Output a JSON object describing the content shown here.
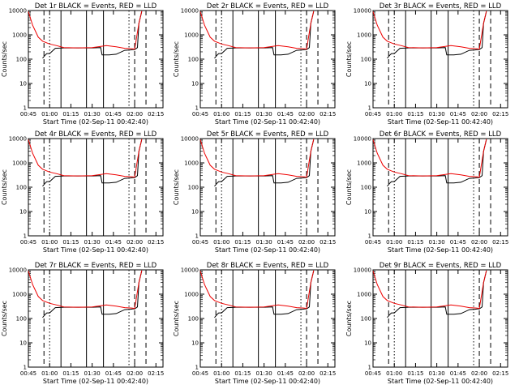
{
  "colors": {
    "events": "#000000",
    "lld": "#ee0000",
    "axes": "#000000",
    "background": "#ffffff"
  },
  "chart_data": [
    {
      "type": "line",
      "title": "Det 1r BLACK = Events, RED = LLD"
    },
    {
      "type": "line",
      "title": "Det 2r BLACK = Events, RED = LLD"
    },
    {
      "type": "line",
      "title": "Det 3r BLACK = Events, RED = LLD"
    },
    {
      "type": "line",
      "title": "Det 4r BLACK = Events, RED = LLD"
    },
    {
      "type": "line",
      "title": "Det 5r BLACK = Events, RED = LLD"
    },
    {
      "type": "line",
      "title": "Det 6r BLACK = Events, RED = LLD"
    },
    {
      "type": "line",
      "title": "Det 7r BLACK = Events, RED = LLD"
    },
    {
      "type": "line",
      "title": "Det 8r BLACK = Events, RED = LLD"
    },
    {
      "type": "line",
      "title": "Det 9r BLACK = Events, RED = LLD"
    }
  ],
  "common": {
    "xlabel": "Start Time (02-Sep-11 00:42:40)",
    "ylabel": "Counts/sec",
    "y_scale": "log",
    "ylim": [
      1,
      10000
    ],
    "y_ticks": [
      1,
      10,
      100,
      1000,
      10000
    ],
    "y_tick_labels": [
      "1",
      "10",
      "100",
      "1000",
      "10000"
    ],
    "xlim": [
      "00:45",
      "02:20"
    ],
    "x_tick_labels": [
      "00:45",
      "01:00",
      "01:15",
      "01:30",
      "01:45",
      "02:00",
      "02:15"
    ],
    "x_tick_values": [
      "00:45",
      "01:00",
      "01:15",
      "01:30",
      "01:45",
      "02:00",
      "02:15"
    ],
    "events_series": {
      "name": "Events",
      "color": "black",
      "x": [
        "00:55",
        "00:57",
        "00:58",
        "01:00",
        "01:04",
        "01:10",
        "01:20",
        "01:30",
        "01:36",
        "01:37",
        "01:42",
        "01:47",
        "01:53",
        "01:57",
        "01:59",
        "02:00",
        "02:02",
        "02:03",
        "02:05"
      ],
      "y": [
        110,
        150,
        170,
        170,
        280,
        290,
        290,
        290,
        300,
        150,
        150,
        160,
        230,
        240,
        250,
        250,
        300,
        3000,
        9000
      ]
    },
    "lld_series": {
      "name": "LLD",
      "color": "red",
      "x": [
        "00:45",
        "00:48",
        "00:52",
        "00:55",
        "01:00",
        "01:05",
        "01:10",
        "01:20",
        "01:30",
        "01:40",
        "01:47",
        "01:53",
        "01:58",
        "02:00",
        "02:03",
        "02:05"
      ],
      "y": [
        9000,
        2500,
        800,
        550,
        420,
        360,
        300,
        290,
        300,
        360,
        320,
        280,
        270,
        260,
        3000,
        9500
      ]
    },
    "vertical_markers": [
      {
        "x": "00:56",
        "style": "dashed"
      },
      {
        "x": "01:00",
        "style": "dotted"
      },
      {
        "x": "01:08",
        "style": "solid"
      },
      {
        "x": "01:26",
        "style": "solid"
      },
      {
        "x": "01:38",
        "style": "solid"
      },
      {
        "x": "01:56",
        "style": "dotted"
      },
      {
        "x": "02:00",
        "style": "dashed"
      },
      {
        "x": "02:08",
        "style": "dashed"
      }
    ]
  }
}
